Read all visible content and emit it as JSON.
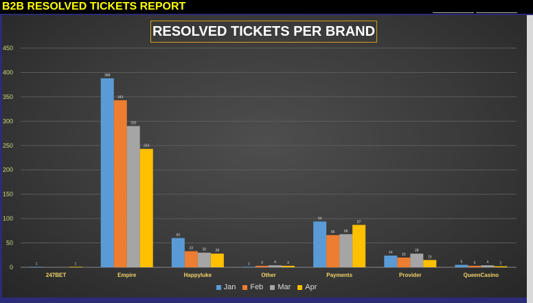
{
  "header": {
    "title": "B2B RESOLVED TICKETS REPORT"
  },
  "chart_data": {
    "type": "bar",
    "title": "RESOLVED TICKETS PER BRAND",
    "xlabel": "",
    "ylabel": "",
    "categories": [
      "247BET",
      "Empire",
      "Happyluke",
      "Other",
      "Payments",
      "Provider",
      "QueenCasino"
    ],
    "ylim": [
      0,
      450
    ],
    "yticks": [
      0,
      50,
      100,
      150,
      200,
      250,
      300,
      350,
      400,
      450
    ],
    "grid": true,
    "legend": "bottom",
    "series": [
      {
        "name": "Jan",
        "color": "#5b9bd5",
        "values": [
          1,
          388,
          60,
          1,
          94,
          24,
          5
        ],
        "labels": [
          "1",
          "388",
          "60",
          "1",
          "94",
          "24",
          "5"
        ]
      },
      {
        "name": "Feb",
        "color": "#ed7d31",
        "values": [
          0,
          343,
          33,
          3,
          66,
          20,
          3
        ],
        "labels": [
          "",
          "343",
          "33",
          "3",
          "66",
          "20",
          "3"
        ]
      },
      {
        "name": "Mar",
        "color": "#a5a5a5",
        "values": [
          0,
          290,
          30,
          4,
          68,
          28,
          4
        ],
        "labels": [
          "",
          "290",
          "30",
          "4",
          "68",
          "28",
          "4"
        ]
      },
      {
        "name": "Apr",
        "color": "#ffc000",
        "values": [
          1,
          243,
          28,
          3,
          87,
          15,
          2
        ],
        "labels": [
          "1",
          "243",
          "28",
          "3",
          "87",
          "15",
          "2"
        ]
      }
    ]
  }
}
